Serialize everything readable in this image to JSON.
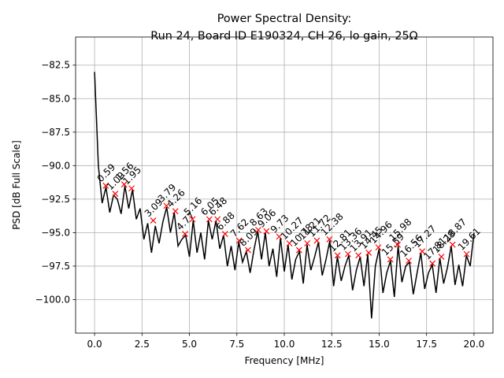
{
  "chart_data": {
    "type": "line",
    "title": [
      "Power Spectral Density:",
      "Run 24, Board ID E190324, CH 26, lo gain, 25Ω"
    ],
    "xlabel": "Frequency [MHz]",
    "ylabel": "PSD [dB Full Scale]",
    "xlim": [
      -1,
      21
    ],
    "ylim": [
      -102.5,
      -80.4
    ],
    "grid": true,
    "xticks": [
      {
        "value": 0,
        "label": "0.0"
      },
      {
        "value": 2.5,
        "label": "2.5"
      },
      {
        "value": 5,
        "label": "5.0"
      },
      {
        "value": 7.5,
        "label": "7.5"
      },
      {
        "value": 10,
        "label": "10.0"
      },
      {
        "value": 12.5,
        "label": "12.5"
      },
      {
        "value": 15,
        "label": "15.0"
      },
      {
        "value": 17.5,
        "label": "17.5"
      },
      {
        "value": 20,
        "label": "20.0"
      }
    ],
    "yticks": [
      {
        "value": -100,
        "label": "−100.0"
      },
      {
        "value": -97.5,
        "label": "−97.5"
      },
      {
        "value": -95,
        "label": "−95.0"
      },
      {
        "value": -92.5,
        "label": "−92.5"
      },
      {
        "value": -90,
        "label": "−90.0"
      },
      {
        "value": -87.5,
        "label": "−87.5"
      },
      {
        "value": -85,
        "label": "−85.0"
      },
      {
        "value": -82.5,
        "label": "−82.5"
      }
    ],
    "line": {
      "color": "#000000",
      "x": [
        0,
        0.2,
        0.4,
        0.6,
        0.8,
        1,
        1.2,
        1.4,
        1.6,
        1.8,
        2,
        2.2,
        2.4,
        2.6,
        2.8,
        3,
        3.2,
        3.4,
        3.6,
        3.8,
        4,
        4.2,
        4.4,
        4.6,
        4.8,
        5,
        5.2,
        5.4,
        5.6,
        5.8,
        6,
        6.2,
        6.4,
        6.6,
        6.8,
        7,
        7.2,
        7.4,
        7.6,
        7.8,
        8,
        8.2,
        8.4,
        8.6,
        8.8,
        9,
        9.2,
        9.4,
        9.6,
        9.8,
        10,
        10.2,
        10.4,
        10.6,
        10.8,
        11,
        11.2,
        11.4,
        11.6,
        11.8,
        12,
        12.2,
        12.4,
        12.6,
        12.8,
        13,
        13.2,
        13.4,
        13.6,
        13.8,
        14,
        14.2,
        14.4,
        14.6,
        14.8,
        15,
        15.2,
        15.4,
        15.6,
        15.8,
        16,
        16.2,
        16.4,
        16.6,
        16.8,
        17,
        17.2,
        17.4,
        17.6,
        17.8,
        18,
        18.2,
        18.4,
        18.6,
        18.8,
        19,
        19.2,
        19.4,
        19.6,
        19.8,
        20
      ],
      "values": [
        -83,
        -90,
        -92.8,
        -91.6,
        -93.5,
        -92.2,
        -92.5,
        -93.6,
        -91.5,
        -93.2,
        -91.8,
        -94,
        -93.2,
        -95.5,
        -94.3,
        -96.5,
        -94.5,
        -95.8,
        -94.2,
        -93.1,
        -95,
        -93.5,
        -96,
        -95.5,
        -95.2,
        -96.8,
        -94.1,
        -96.5,
        -95,
        -97,
        -94.1,
        -95.5,
        -94.1,
        -96.2,
        -95.2,
        -97.5,
        -96,
        -97.8,
        -95.7,
        -97.2,
        -96.4,
        -98,
        -96.3,
        -94.9,
        -97,
        -95,
        -97.5,
        -96.2,
        -98.3,
        -95.4,
        -97.9,
        -95.9,
        -98.5,
        -97,
        -96.4,
        -98.8,
        -95.9,
        -97.8,
        -96.8,
        -95.7,
        -98.2,
        -97,
        -95.6,
        -99,
        -96.8,
        -98.6,
        -97.5,
        -96.7,
        -99.3,
        -97.8,
        -96.8,
        -99,
        -96.6,
        -101.4,
        -97.5,
        -96.2,
        -99.5,
        -98,
        -97.1,
        -99.8,
        -96,
        -98.7,
        -97.5,
        -97.2,
        -99.6,
        -98,
        -96.5,
        -99.2,
        -98,
        -97.4,
        -99.5,
        -96.9,
        -98.8,
        -97.6,
        -96,
        -98.9,
        -97.4,
        -99,
        -96.7,
        -97.5,
        -95
      ]
    },
    "markers": {
      "color": "#ff0000",
      "x": [
        0.59,
        1.09,
        1.56,
        1.95,
        3.09,
        3.79,
        4.26,
        4.77,
        5.16,
        6.05,
        6.48,
        6.88,
        7.62,
        8.09,
        8.63,
        9.06,
        9.73,
        10.27,
        10.78,
        11.21,
        11.72,
        12.38,
        12.81,
        13.36,
        13.91,
        14.45,
        14.96,
        15.59,
        15.98,
        16.56,
        17.27,
        17.81,
        18.28,
        18.87,
        19.61
      ],
      "values": [
        -91.5,
        -92.1,
        -91.4,
        -91.7,
        -94.1,
        -93,
        -93.4,
        -95.1,
        -94,
        -94,
        -94,
        -95.1,
        -95.6,
        -96.3,
        -94.8,
        -94.9,
        -95.3,
        -95.8,
        -96.3,
        -95.8,
        -95.6,
        -95.5,
        -96.7,
        -96.6,
        -96.7,
        -96.5,
        -96.1,
        -97,
        -95.9,
        -97.1,
        -96.4,
        -97.3,
        -96.8,
        -95.9,
        -96.6
      ]
    }
  }
}
